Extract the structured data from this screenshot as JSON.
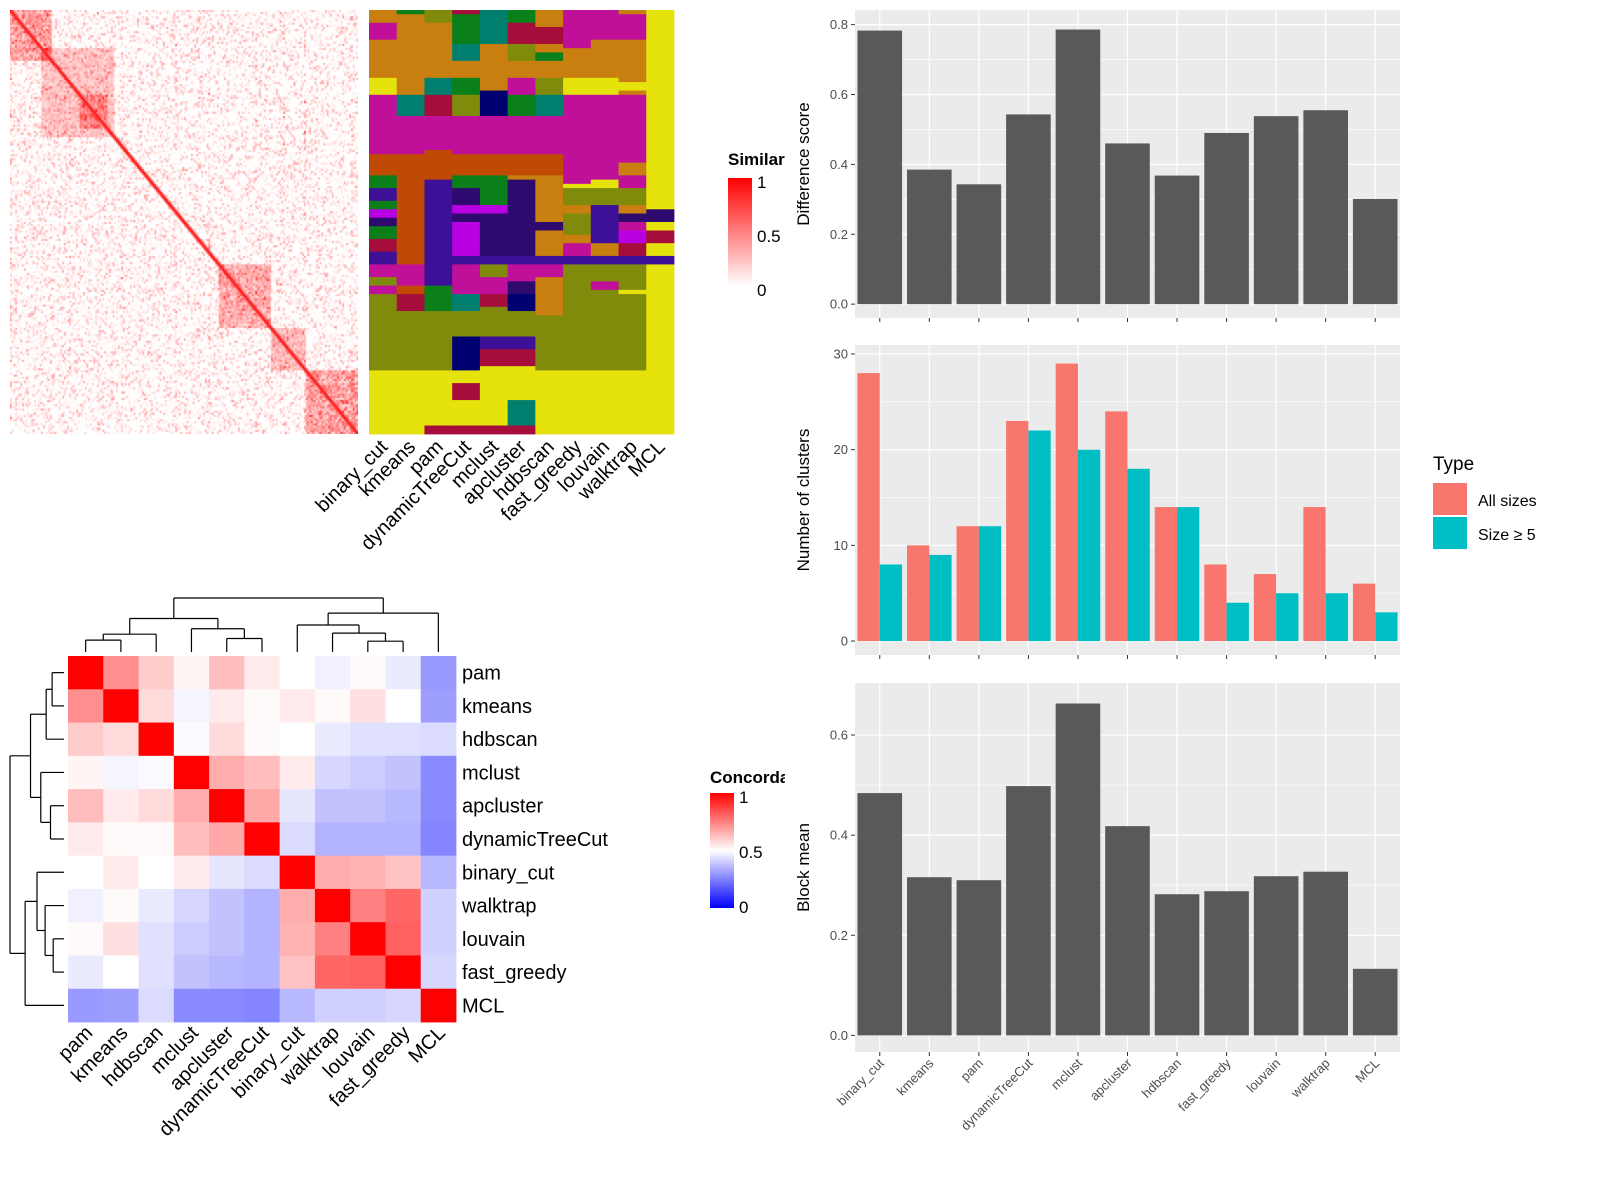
{
  "similarity_legend": {
    "title": "Similarity",
    "ticks": [
      "1",
      "0.5",
      "0"
    ],
    "low_color": "#FFFFFF",
    "high_color": "#FF0000"
  },
  "concordance_legend": {
    "title": "Concordance",
    "ticks": [
      "1",
      "0.5",
      "0"
    ],
    "low_color": "#0000FF",
    "mid_color": "#FFFFFF",
    "high_color": "#FF0000"
  },
  "type_legend": {
    "title": "Type",
    "items": [
      {
        "label": "All sizes",
        "color": "#F8766D"
      },
      {
        "label": "Size ≥ 5",
        "color": "#00BFC4"
      }
    ]
  },
  "chart_data": [
    {
      "type": "heatmap",
      "name": "membership",
      "columns": [
        "binary_cut",
        "kmeans",
        "pam",
        "dynamicTreeCut",
        "mclust",
        "apcluster",
        "hdbscan",
        "fast_greedy",
        "louvain",
        "walktrap",
        "MCL"
      ],
      "palette": {
        "O": "#C87F10",
        "M": "#C0109A",
        "D": "#C04A04",
        "Y": "#E6E20C",
        "L": "#808B0C",
        "I": "#3D1097",
        "N": "#000070",
        "T": "#007F6F",
        "G": "#0A7F1A",
        "R": "#A50E3A",
        "V": "#B800E0",
        "K": "#2E0A6E"
      },
      "segments": [
        "0-3:O,3-7:M,7-16:O,16-20:Y,20-34:M,34-39:D,39-42:G,42-45:I,45-47:G,47-49:V,49-51:K,51-54:G,54-57:R,57-60:I,60-63:M,63-65:L,65-67:M,67-85:L,85-100:Y",
        "0-1:G,1-20:O,20-25:T,25-34:M,34-60:D,60-65:M,65-67:D,67-71:R,71-85:L,85-100:Y",
        "0-3:L,3-16:O,16-20:T,20-25:R,25-33:M,33-40:D,40-65:I,65-71:G,71-85:L,85-98:Y,98-100:R",
        "0-1:R,1-8:G,8-12:T,12-16:O,16-20:G,20-25:L,25-34:M,34-39:D,39-42:G,42-46:K,46-48:V,48-50:K,50-58:V,58-60:I,60-67:M,67-71:T,71-77:L,77-85:N,85-88:Y,88-92:R,92-98:Y,98-100:R",
        "0-8:T,8-19:O,19-25:N,25-34:M,34-39:D,39-46:G,46-48:V,48-58:K,58-60:I,60-63:L,63-67:M,67-70:R,70-77:L,77-80:I,80-84:R,84-98:Y,98-100:R",
        "0-3:G,3-8:R,8-12:L,12-16:O,16-20:M,20-25:G,25-34:M,34-39:D,39-40:O,40-58:K,58-60:I,60-64:M,64-67:K,67-71:N,71-77:L,77-80:I,80-84:R,84-92:Y,92-98:T,98-100:R",
        "0-4:O,4-8:R,8-10:O,10-12:G,12-16:O,16-20:L,20-25:T,25-34:M,34-39:D,39-50:O,50-52:K,52-58:O,58-60:I,60-63:M,63-72:O,72-85:L,85-100:Y",
        "0-9:M,9-16:O,16-20:Y,20-41:M,41-42:Y,42-46:L,46-48:O,48-53:L,53-55:O,55-58:M,58-60:I,60-85:L,85-100:Y",
        "0-7:M,7-16:O,16-20:Y,20-40:M,40-42:Y,42-46:L,46-55:I,55-58:O,58-60:I,60-64:L,64-66:M,66-85:L,85-100:Y",
        "0-1:O,1-7:M,7-17:O,17-19:Y,19-20:O,20-36:M,36-39:O,39-42:M,42-46:L,46-48:O,48-50:K,50-52:M,52-55:V,55-58:R,58-60:I,60-66:L,66-67:Y,67-85:L,85-100:Y",
        "0-47:Y,47-50:K,50-52:Y,52-55:R,55-58:Y,58-60:I,60-100:Y"
      ]
    },
    {
      "type": "heatmap",
      "name": "concordance",
      "labels": [
        "pam",
        "kmeans",
        "hdbscan",
        "mclust",
        "apcluster",
        "dynamicTreeCut",
        "binary_cut",
        "walktrap",
        "louvain",
        "fast_greedy",
        "MCL"
      ],
      "values": [
        [
          1,
          0.72,
          0.6,
          0.52,
          0.63,
          0.54,
          0.5,
          0.47,
          0.51,
          0.46,
          0.3
        ],
        [
          0.72,
          1,
          0.57,
          0.48,
          0.54,
          0.51,
          0.54,
          0.51,
          0.56,
          0.5,
          0.31
        ],
        [
          0.6,
          0.57,
          1,
          0.49,
          0.57,
          0.51,
          0.5,
          0.46,
          0.44,
          0.44,
          0.43
        ],
        [
          0.52,
          0.48,
          0.49,
          1,
          0.66,
          0.63,
          0.54,
          0.42,
          0.4,
          0.38,
          0.27
        ],
        [
          0.63,
          0.54,
          0.57,
          0.66,
          1,
          0.67,
          0.45,
          0.38,
          0.38,
          0.36,
          0.27
        ],
        [
          0.54,
          0.51,
          0.51,
          0.63,
          0.67,
          1,
          0.43,
          0.35,
          0.35,
          0.35,
          0.26
        ],
        [
          0.5,
          0.54,
          0.5,
          0.54,
          0.45,
          0.43,
          1,
          0.66,
          0.65,
          0.62,
          0.36
        ],
        [
          0.47,
          0.51,
          0.46,
          0.42,
          0.38,
          0.35,
          0.66,
          1,
          0.75,
          0.8,
          0.41
        ],
        [
          0.51,
          0.56,
          0.44,
          0.4,
          0.38,
          0.35,
          0.65,
          0.75,
          1,
          0.81,
          0.41
        ],
        [
          0.46,
          0.5,
          0.44,
          0.38,
          0.36,
          0.35,
          0.62,
          0.8,
          0.81,
          1,
          0.42
        ],
        [
          0.3,
          0.31,
          0.43,
          0.27,
          0.27,
          0.26,
          0.36,
          0.41,
          0.41,
          0.42,
          1
        ]
      ],
      "range": [
        0,
        1
      ]
    },
    {
      "type": "bar",
      "name": "difference",
      "categories": [
        "binary_cut",
        "kmeans",
        "pam",
        "dynamicTreeCut",
        "mclust",
        "apcluster",
        "hdbscan",
        "fast_greedy",
        "louvain",
        "walktrap",
        "MCL"
      ],
      "values": [
        0.783,
        0.385,
        0.343,
        0.543,
        0.786,
        0.46,
        0.368,
        0.49,
        0.538,
        0.555,
        0.301
      ],
      "ylabel": "Difference score",
      "yticks": [
        "0.0",
        "0.2",
        "0.4",
        "0.6",
        "0.8"
      ],
      "ylim": [
        0,
        0.83
      ],
      "bar_color": "#595959",
      "grid": true
    },
    {
      "type": "bar",
      "name": "clusters",
      "categories": [
        "binary_cut",
        "kmeans",
        "pam",
        "dynamicTreeCut",
        "mclust",
        "apcluster",
        "hdbscan",
        "fast_greedy",
        "louvain",
        "walktrap",
        "MCL"
      ],
      "series": [
        {
          "name": "All sizes",
          "values": [
            28,
            10,
            12,
            23,
            29,
            24,
            14,
            8,
            7,
            14,
            6
          ]
        },
        {
          "name": "Size ≥ 5",
          "values": [
            8,
            9,
            12,
            22,
            20,
            18,
            14,
            4,
            5,
            5,
            3
          ]
        }
      ],
      "ylabel": "Number of clusters",
      "yticks": [
        "0",
        "10",
        "20",
        "30"
      ],
      "ylim": [
        0,
        30.5
      ],
      "legend": "right",
      "grid": true
    },
    {
      "type": "bar",
      "name": "block-mean",
      "categories": [
        "binary_cut",
        "kmeans",
        "pam",
        "dynamicTreeCut",
        "mclust",
        "apcluster",
        "hdbscan",
        "fast_greedy",
        "louvain",
        "walktrap",
        "MCL"
      ],
      "values": [
        0.484,
        0.316,
        0.31,
        0.498,
        0.663,
        0.418,
        0.282,
        0.288,
        0.318,
        0.327,
        0.133
      ],
      "ylabel": "Block mean",
      "yticks": [
        "0.0",
        "0.2",
        "0.4",
        "0.6"
      ],
      "ylim": [
        0,
        0.694
      ],
      "bar_color": "#595959",
      "grid": true
    }
  ]
}
